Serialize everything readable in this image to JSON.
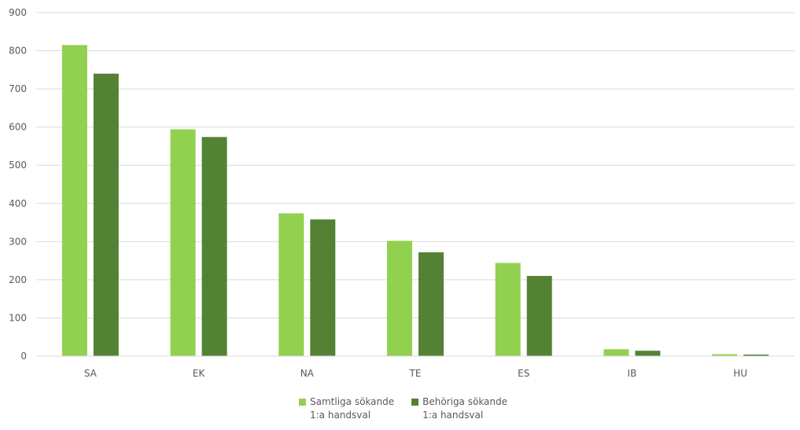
{
  "chart_data": {
    "type": "bar",
    "categories": [
      "SA",
      "EK",
      "NA",
      "TE",
      "ES",
      "IB",
      "HU"
    ],
    "series": [
      {
        "name": "Samtliga sökande\n1:a handsval",
        "color": "#92d050",
        "values": [
          815,
          594,
          374,
          302,
          244,
          18,
          5
        ]
      },
      {
        "name": "Behöriga sökande\n1:a handsval",
        "color": "#548235",
        "values": [
          740,
          574,
          358,
          272,
          210,
          14,
          4
        ]
      }
    ],
    "ylim": [
      0,
      900
    ],
    "yticks": [
      "0",
      "100",
      "200",
      "300",
      "400",
      "500",
      "600",
      "700",
      "800",
      "900"
    ],
    "grid": true,
    "legend_position": "bottom"
  }
}
